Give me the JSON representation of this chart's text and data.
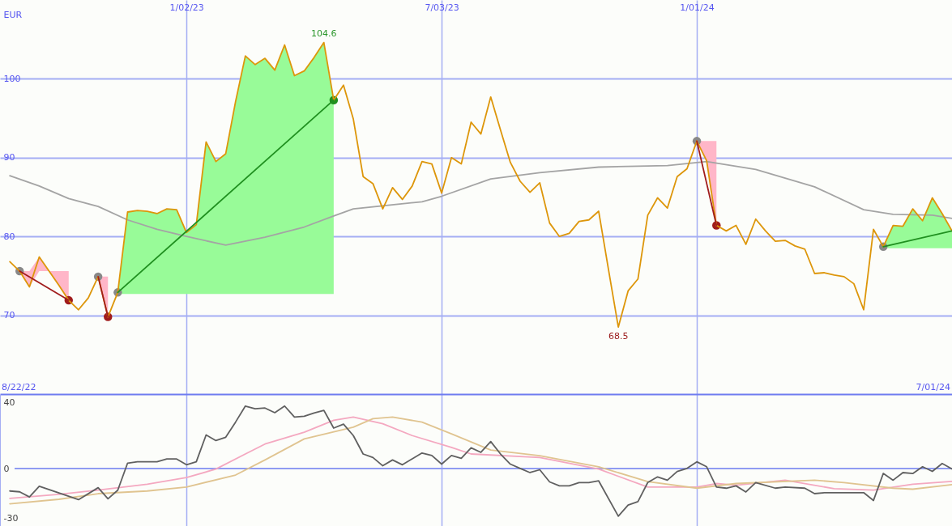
{
  "chart_data": [
    {
      "type": "line",
      "ylabel": "EUR",
      "xlim": [
        "2022-08-22",
        "2024-07-01"
      ],
      "xticks": [
        {
          "value": "2023-01-02",
          "label": "1/02/23"
        },
        {
          "value": "2023-07-03",
          "label": "7/03/23"
        },
        {
          "value": "2024-01-01",
          "label": "1/01/24"
        }
      ],
      "ylim": [
        60,
        110
      ],
      "yticks": [
        70,
        80,
        90,
        100
      ],
      "grid": true,
      "annotations": [
        "8/22/22",
        "7/01/24",
        {
          "text": "104.6",
          "x": "2023-04-10",
          "y": 104.6
        },
        {
          "text": "68.5",
          "x": "2023-11-06",
          "y": 68.5
        }
      ],
      "series": [
        {
          "color": "#a4a4a4",
          "x": [
            "2022-08-29",
            "2022-09-19",
            "2022-10-10",
            "2022-10-31",
            "2022-11-21",
            "2022-12-12",
            "2023-01-02",
            "2023-01-30",
            "2023-02-27",
            "2023-03-27",
            "2023-04-17",
            "2023-05-01",
            "2023-06-19",
            "2023-07-03",
            "2023-08-07",
            "2023-09-11",
            "2023-10-23",
            "2023-12-11",
            "2024-01-08",
            "2024-02-12",
            "2024-03-25",
            "2024-04-29",
            "2024-05-20",
            "2024-06-17",
            "2024-07-01"
          ],
          "values": [
            87.7,
            86.4,
            84.8,
            83.8,
            82.1,
            80.9,
            80.0,
            78.9,
            79.9,
            81.2,
            82.6,
            83.5,
            84.4,
            85.1,
            87.3,
            88.1,
            88.8,
            89.0,
            89.5,
            88.5,
            86.3,
            83.4,
            82.8,
            82.7,
            82.3
          ]
        },
        {
          "color": "#dd960a",
          "x": [
            "2022-08-29",
            "2022-09-05"
          ],
          "values": [
            76.8,
            75.6
          ]
        },
        {
          "color": "#dd960a",
          "x": [
            "2022-09-05",
            "2022-09-12",
            "2022-09-19",
            "2022-09-26",
            "2022-10-03",
            "2022-10-10"
          ],
          "values": [
            75.6,
            73.6,
            77.4,
            75.6,
            73.8,
            71.9
          ],
          "lower": [
            75.6,
            73.6,
            75.6,
            75.6,
            73.8,
            71.9
          ],
          "upper": [
            75.6,
            75.6,
            77.4,
            75.6,
            75.6,
            75.6
          ]
        },
        {
          "color": "#dd960a",
          "x": [
            "2022-10-10",
            "2022-10-17",
            "2022-10-24",
            "2022-10-31"
          ],
          "values": [
            71.9,
            70.7,
            72.2,
            74.9
          ]
        },
        {
          "color": "#dd960a",
          "x": [
            "2022-10-31",
            "2022-11-07"
          ],
          "values": [
            74.9,
            69.8
          ],
          "lower": [
            74.9,
            69.8
          ],
          "upper": [
            74.9,
            74.9
          ]
        },
        {
          "color": "#dd960a",
          "x": [
            "2022-11-07",
            "2022-11-14"
          ],
          "values": [
            69.8,
            72.9
          ]
        },
        {
          "color": "#dd960a",
          "x": [
            "2022-11-14",
            "2022-11-21",
            "2022-11-28",
            "2022-12-05",
            "2022-12-12",
            "2022-12-19",
            "2022-12-26",
            "2023-01-02",
            "2023-01-09",
            "2023-01-16",
            "2023-01-23",
            "2023-01-30",
            "2023-02-06",
            "2023-02-13",
            "2023-02-20",
            "2023-02-27",
            "2023-03-06",
            "2023-03-13",
            "2023-03-20",
            "2023-03-27",
            "2023-04-03",
            "2023-04-10",
            "2023-04-17"
          ],
          "values": [
            72.9,
            83.1,
            83.3,
            83.2,
            82.9,
            83.5,
            83.4,
            80.5,
            81.5,
            92.0,
            89.5,
            90.5,
            97.1,
            102.9,
            101.8,
            102.6,
            101.1,
            104.3,
            100.4,
            101.0,
            102.7,
            104.6,
            97.3
          ],
          "lower": [
            72.7,
            72.7,
            72.7,
            72.7,
            72.7,
            72.7,
            72.7,
            72.7,
            72.7,
            72.7,
            72.7,
            72.7,
            72.7,
            72.7,
            72.7,
            72.7,
            72.7,
            72.7,
            72.7,
            72.7,
            72.7,
            72.7,
            72.7
          ],
          "upper": [
            72.9,
            83.1,
            83.3,
            83.2,
            82.9,
            83.5,
            83.4,
            80.5,
            81.5,
            92.0,
            89.5,
            90.5,
            97.1,
            102.9,
            101.8,
            102.6,
            101.1,
            104.3,
            100.4,
            101.0,
            102.7,
            104.6,
            97.3
          ]
        },
        {
          "color": "#dd960a",
          "x": [
            "2023-04-17",
            "2023-04-24",
            "2023-05-01",
            "2023-05-08",
            "2023-05-15",
            "2023-05-22",
            "2023-05-29",
            "2023-06-05",
            "2023-06-12",
            "2023-06-19",
            "2023-06-26",
            "2023-07-03",
            "2023-07-10",
            "2023-07-17",
            "2023-07-24",
            "2023-07-31",
            "2023-08-07",
            "2023-08-14",
            "2023-08-21",
            "2023-08-28",
            "2023-09-04",
            "2023-09-11",
            "2023-09-18",
            "2023-09-25",
            "2023-10-02",
            "2023-10-09",
            "2023-10-16",
            "2023-10-23",
            "2023-10-30",
            "2023-11-06",
            "2023-11-13",
            "2023-11-20",
            "2023-11-27",
            "2023-12-04",
            "2023-12-11",
            "2023-12-18",
            "2023-12-25",
            "2024-01-01"
          ],
          "values": [
            97.3,
            99.2,
            94.9,
            87.6,
            86.7,
            83.5,
            86.2,
            84.7,
            86.4,
            89.5,
            89.2,
            85.5,
            90.0,
            89.2,
            94.5,
            93.0,
            97.7,
            93.5,
            89.4,
            87.0,
            85.6,
            86.8,
            81.7,
            80.0,
            80.4,
            81.9,
            82.1,
            83.2,
            75.8,
            68.5,
            73.1,
            74.6,
            82.7,
            84.9,
            83.6,
            87.6,
            88.6,
            92.1
          ]
        },
        {
          "color": "#dd960a",
          "x": [
            "2024-01-01",
            "2024-01-08",
            "2024-01-15"
          ],
          "values": [
            92.1,
            89.6,
            81.4
          ],
          "lower": [
            92.1,
            89.6,
            81.4
          ],
          "upper": [
            92.1,
            92.1,
            92.1
          ]
        },
        {
          "color": "#dd960a",
          "x": [
            "2024-01-15",
            "2024-01-22",
            "2024-01-29",
            "2024-02-05",
            "2024-02-12",
            "2024-02-19",
            "2024-02-26",
            "2024-03-04",
            "2024-03-11",
            "2024-03-18",
            "2024-03-25",
            "2024-04-01",
            "2024-04-08",
            "2024-04-15",
            "2024-04-22",
            "2024-04-29",
            "2024-05-06",
            "2024-05-13"
          ],
          "values": [
            81.4,
            80.7,
            81.4,
            79.0,
            82.2,
            80.7,
            79.4,
            79.5,
            78.8,
            78.4,
            75.3,
            75.4,
            75.1,
            74.9,
            74.0,
            70.7,
            80.9,
            78.7
          ]
        },
        {
          "color": "#dd960a",
          "x": [
            "2024-05-13",
            "2024-05-20",
            "2024-05-27",
            "2024-06-03",
            "2024-06-10",
            "2024-06-17",
            "2024-06-24",
            "2024-07-01"
          ],
          "values": [
            78.7,
            81.4,
            81.3,
            83.5,
            82.0,
            84.9,
            82.9,
            80.7
          ],
          "lower": [
            78.5,
            78.5,
            78.5,
            78.5,
            78.5,
            78.5,
            78.5,
            78.5
          ],
          "upper": [
            78.7,
            81.4,
            81.3,
            83.5,
            82.0,
            84.9,
            82.9,
            80.7
          ]
        },
        {
          "color": "#a01c1c",
          "x": [
            "2022-09-05",
            "2022-10-10"
          ],
          "values": [
            75.6,
            71.9
          ]
        },
        {
          "color": "#a01c1c",
          "x": [
            "2022-10-31",
            "2022-11-07"
          ],
          "values": [
            74.9,
            69.8
          ]
        },
        {
          "color": "#209020",
          "x": [
            "2022-11-14",
            "2023-04-17"
          ],
          "values": [
            72.9,
            97.3
          ]
        },
        {
          "color": "#a01c1c",
          "x": [
            "2024-01-01",
            "2024-01-15"
          ],
          "values": [
            92.1,
            81.4
          ]
        },
        {
          "color": "#209020",
          "x": [
            "2024-05-13",
            "2024-07-01"
          ],
          "values": [
            78.7,
            80.7
          ]
        },
        {
          "type": "scatter",
          "marker": "circle",
          "color": "#888888",
          "x": [
            "2022-09-05",
            "2022-10-31",
            "2022-11-14",
            "2024-01-01",
            "2024-05-13"
          ],
          "values": [
            75.6,
            74.9,
            72.9,
            92.1,
            78.7
          ]
        },
        {
          "type": "scatter",
          "marker": "circle",
          "color": "#a01c1c",
          "x": [
            "2022-10-10",
            "2022-11-07",
            "2024-01-15"
          ],
          "values": [
            71.9,
            69.8,
            81.4
          ]
        },
        {
          "type": "scatter",
          "marker": "circle",
          "color": "#209020",
          "x": [
            "2023-04-17"
          ],
          "values": [
            97.3
          ]
        }
      ]
    },
    {
      "type": "line",
      "xlim": [
        "2022-08-22",
        "2024-07-01"
      ],
      "xticks": [
        {
          "value": "2023-01-02",
          "label": null
        },
        {
          "value": "2023-07-03",
          "label": null
        },
        {
          "value": "2024-01-01",
          "label": null
        }
      ],
      "ylim": [
        -34.6,
        44.9
      ],
      "yticks": [
        40,
        0,
        -30
      ],
      "tick_labels": "y",
      "grid": "x",
      "ref_lines": [
        {
          "axis": "y",
          "value": 0
        }
      ],
      "series": [
        {
          "color": "#f4a8c0",
          "x": [
            "2022-08-29",
            "2022-10-03",
            "2022-10-31",
            "2022-12-05",
            "2023-01-02",
            "2023-01-23",
            "2023-02-13",
            "2023-02-27",
            "2023-03-27",
            "2023-04-17",
            "2023-05-01",
            "2023-05-22",
            "2023-06-12",
            "2023-07-10",
            "2023-07-24",
            "2023-09-11",
            "2023-10-23",
            "2023-11-27",
            "2024-01-01",
            "2024-01-15",
            "2024-01-29",
            "2024-03-04",
            "2024-04-08",
            "2024-05-06",
            "2024-06-03",
            "2024-07-01"
          ],
          "values": [
            -18.0,
            -15.5,
            -13.0,
            -9.4,
            -5.4,
            -0.3,
            8.8,
            14.8,
            21.9,
            29.1,
            31.1,
            27.0,
            19.9,
            12.8,
            8.8,
            6.7,
            -0.3,
            -11.1,
            -11.1,
            -9.0,
            -10.0,
            -7.0,
            -12.1,
            -13.0,
            -9.4,
            -7.7
          ]
        },
        {
          "color": "#e0c490",
          "x": [
            "2022-08-29",
            "2022-10-03",
            "2022-10-31",
            "2022-12-05",
            "2023-01-02",
            "2023-02-06",
            "2023-02-27",
            "2023-03-27",
            "2023-05-01",
            "2023-05-15",
            "2023-05-29",
            "2023-06-19",
            "2023-07-10",
            "2023-08-07",
            "2023-09-11",
            "2023-10-23",
            "2023-11-27",
            "2024-01-01",
            "2024-01-29",
            "2024-03-25",
            "2024-04-15",
            "2024-05-20",
            "2024-06-03",
            "2024-07-01"
          ],
          "values": [
            -21.2,
            -18.5,
            -15.1,
            -13.5,
            -11.1,
            -3.9,
            5.2,
            17.9,
            25.0,
            30.1,
            31.1,
            28.0,
            20.9,
            11.2,
            7.8,
            1.1,
            -7.8,
            -11.8,
            -9.0,
            -7.0,
            -8.4,
            -11.8,
            -12.4,
            -9.7
          ]
        },
        {
          "color": "#606060",
          "x": [
            "2022-08-29",
            "2022-09-05",
            "2022-09-12",
            "2022-09-19",
            "2022-10-17",
            "2022-10-31",
            "2022-11-07",
            "2022-11-14",
            "2022-11-21",
            "2022-11-28",
            "2022-12-12",
            "2022-12-19",
            "2022-12-26",
            "2023-01-02",
            "2023-01-09",
            "2023-01-16",
            "2023-01-23",
            "2023-01-30",
            "2023-02-06",
            "2023-02-13",
            "2023-02-20",
            "2023-02-27",
            "2023-03-06",
            "2023-03-13",
            "2023-03-20",
            "2023-03-27",
            "2023-04-03",
            "2023-04-10",
            "2023-04-17",
            "2023-04-24",
            "2023-05-01",
            "2023-05-08",
            "2023-05-15",
            "2023-05-22",
            "2023-05-29",
            "2023-06-05",
            "2023-06-19",
            "2023-06-26",
            "2023-07-03",
            "2023-07-10",
            "2023-07-17",
            "2023-07-24",
            "2023-07-31",
            "2023-08-07",
            "2023-08-14",
            "2023-08-21",
            "2023-08-28",
            "2023-09-04",
            "2023-09-11",
            "2023-09-18",
            "2023-09-25",
            "2023-10-02",
            "2023-10-09",
            "2023-10-16",
            "2023-10-23",
            "2023-11-06",
            "2023-11-13",
            "2023-11-20",
            "2023-11-27",
            "2023-12-04",
            "2023-12-11",
            "2023-12-18",
            "2023-12-25",
            "2024-01-01",
            "2024-01-08",
            "2024-01-15",
            "2024-01-22",
            "2024-01-29",
            "2024-02-05",
            "2024-02-12",
            "2024-02-26",
            "2024-03-04",
            "2024-03-18",
            "2024-03-25",
            "2024-04-01",
            "2024-04-29",
            "2024-05-06",
            "2024-05-13",
            "2024-05-20",
            "2024-05-27",
            "2024-06-03",
            "2024-06-10",
            "2024-06-17",
            "2024-06-24",
            "2024-07-01"
          ],
          "values": [
            -13.5,
            -14.0,
            -17.1,
            -10.6,
            -18.7,
            -11.5,
            -18.2,
            -13.0,
            3.3,
            4.1,
            4.1,
            5.8,
            5.8,
            2.3,
            4.1,
            20.3,
            16.9,
            18.9,
            28.0,
            37.7,
            36.1,
            36.5,
            33.7,
            37.7,
            31.1,
            31.5,
            33.5,
            35.1,
            24.4,
            26.8,
            19.9,
            8.8,
            6.7,
            1.7,
            5.2,
            2.3,
            9.4,
            7.9,
            2.7,
            7.9,
            6.2,
            12.5,
            9.8,
            16.3,
            8.8,
            2.7,
            0.1,
            -2.4,
            -0.7,
            -8.0,
            -10.4,
            -10.4,
            -8.4,
            -8.4,
            -7.4,
            -28.7,
            -22.0,
            -19.9,
            -8.4,
            -5.0,
            -7.0,
            -1.7,
            0.1,
            4.1,
            1.1,
            -11.1,
            -11.8,
            -10.4,
            -14.1,
            -8.4,
            -11.8,
            -11.1,
            -11.8,
            -15.1,
            -14.5,
            -14.5,
            -19.2,
            -2.9,
            -7.0,
            -2.4,
            -3.0,
            1.1,
            -1.7,
            3.1,
            -0.2
          ]
        }
      ]
    }
  ]
}
